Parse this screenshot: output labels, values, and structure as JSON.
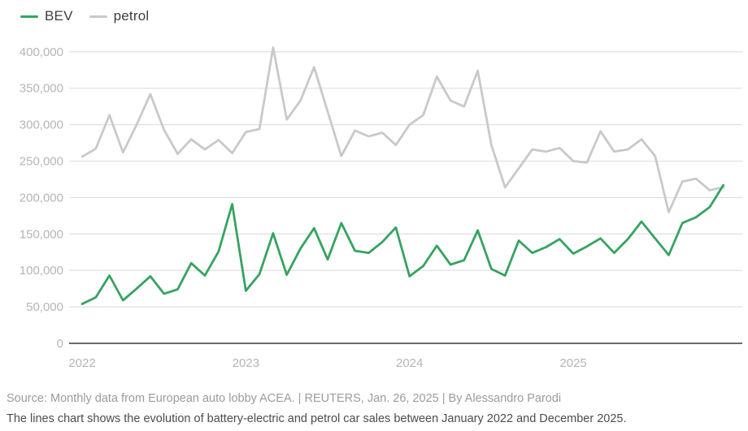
{
  "legend": {
    "items": [
      {
        "label": "BEV",
        "color": "#36a360"
      },
      {
        "label": "petrol",
        "color": "#c9c9c9"
      }
    ]
  },
  "footer": {
    "source_line": "Source: Monthly data from European auto lobby ACEA. | REUTERS, Jan. 26, 2025 | By Alessandro Parodi",
    "description_line": "The lines chart shows the evolution of battery-electric and petrol car sales between January 2022 and December 2025."
  },
  "chart_data": {
    "type": "line",
    "title": "",
    "xlabel": "",
    "ylabel": "",
    "x_unit": "month",
    "x_range": [
      "2022-01",
      "2025-12"
    ],
    "grid": "horizontal",
    "legend_position": "top-left",
    "ylim": [
      0,
      400000
    ],
    "categories": [
      "2022-01",
      "2022-02",
      "2022-03",
      "2022-04",
      "2022-05",
      "2022-06",
      "2022-07",
      "2022-08",
      "2022-09",
      "2022-10",
      "2022-11",
      "2022-12",
      "2023-01",
      "2023-02",
      "2023-03",
      "2023-04",
      "2023-05",
      "2023-06",
      "2023-07",
      "2023-08",
      "2023-09",
      "2023-10",
      "2023-11",
      "2023-12",
      "2024-01",
      "2024-02",
      "2024-03",
      "2024-04",
      "2024-05",
      "2024-06",
      "2024-07",
      "2024-08",
      "2024-09",
      "2024-10",
      "2024-11",
      "2024-12",
      "2025-01",
      "2025-02",
      "2025-03",
      "2025-04",
      "2025-05",
      "2025-06",
      "2025-07",
      "2025-08",
      "2025-09",
      "2025-10",
      "2025-11",
      "2025-12"
    ],
    "series": [
      {
        "name": "BEV",
        "color": "#36a360",
        "values": [
          54000,
          63000,
          93000,
          59000,
          75000,
          92000,
          68000,
          74000,
          110000,
          93000,
          126000,
          191000,
          72000,
          95000,
          151000,
          94000,
          130000,
          158000,
          115000,
          165000,
          127000,
          124000,
          139000,
          159000,
          92000,
          106000,
          134000,
          108000,
          114000,
          155000,
          102000,
          93000,
          141000,
          124000,
          132000,
          143000,
          123000,
          133000,
          144000,
          124000,
          143000,
          167000,
          144000,
          121000,
          165000,
          173000,
          187000,
          217000
        ]
      },
      {
        "name": "petrol",
        "color": "#c9c9c9",
        "values": [
          256000,
          267000,
          313000,
          262000,
          300000,
          342000,
          293000,
          260000,
          280000,
          266000,
          279000,
          261000,
          290000,
          294000,
          406000,
          307000,
          333000,
          379000,
          318000,
          257000,
          292000,
          284000,
          289000,
          272000,
          300000,
          313000,
          366000,
          333000,
          325000,
          374000,
          272000,
          214000,
          240000,
          266000,
          263000,
          268000,
          250000,
          248000,
          291000,
          263000,
          266000,
          280000,
          257000,
          180000,
          222000,
          226000,
          210000,
          214000
        ]
      }
    ],
    "yticks": [
      {
        "value": 0,
        "label": "0"
      },
      {
        "value": 50000,
        "label": "50,000"
      },
      {
        "value": 100000,
        "label": "100,000"
      },
      {
        "value": 150000,
        "label": "150,000"
      },
      {
        "value": 200000,
        "label": "200,000"
      },
      {
        "value": 250000,
        "label": "250,000"
      },
      {
        "value": 300000,
        "label": "300,000"
      },
      {
        "value": 350000,
        "label": "350,000"
      },
      {
        "value": 400000,
        "label": "400,000"
      }
    ],
    "xticks": [
      {
        "month_index": 0,
        "label": "2022"
      },
      {
        "month_index": 12,
        "label": "2023"
      },
      {
        "month_index": 24,
        "label": "2024"
      },
      {
        "month_index": 36,
        "label": "2025"
      }
    ]
  }
}
